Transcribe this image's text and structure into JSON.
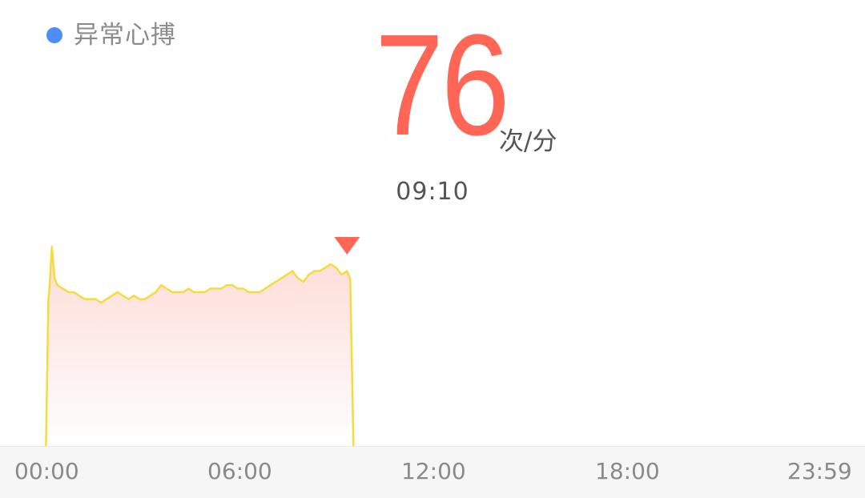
{
  "legend": {
    "label": "异常心搏",
    "dot_color": "#4d8df5"
  },
  "reading": {
    "value": "76",
    "unit": "次/分",
    "time": "09:10",
    "value_color": "#ff6655",
    "marker_color": "#ff6655"
  },
  "chart_data": {
    "type": "area",
    "line_color": "#f5dc3c",
    "fill_top_color": "#fdd9d4",
    "x_axis": {
      "ticks": [
        "00:00",
        "06:00",
        "12:00",
        "18:00",
        "23:59"
      ],
      "range_minutes": [
        0,
        1439
      ]
    },
    "y_axis": {
      "visible": false
    },
    "grid": false,
    "selected_point": {
      "time": "09:10",
      "value": 76
    },
    "series": [
      {
        "x_minutes": [
          5,
          10,
          15,
          20,
          30,
          40,
          50,
          60,
          70,
          80,
          90,
          100,
          110,
          120,
          130,
          140,
          150,
          160,
          170,
          180,
          190,
          200,
          210,
          220,
          230,
          240,
          250,
          260,
          270,
          280,
          290,
          300,
          310,
          320,
          330,
          340,
          350,
          360,
          370,
          380,
          390,
          400,
          410,
          420,
          430,
          440,
          450,
          460,
          470,
          480,
          490,
          500,
          510,
          520,
          530,
          540,
          550
        ],
        "values": [
          70,
          83,
          74,
          72,
          71,
          70,
          70,
          69,
          68,
          68,
          68,
          67,
          68,
          69,
          70,
          69,
          68,
          69,
          68,
          68,
          69,
          70,
          72,
          71,
          70,
          70,
          70,
          71,
          70,
          70,
          70,
          71,
          71,
          71,
          72,
          72,
          71,
          71,
          70,
          70,
          70,
          71,
          72,
          73,
          74,
          75,
          76,
          74,
          73,
          75,
          76,
          76,
          77,
          78,
          77,
          75,
          76
        ]
      }
    ]
  }
}
